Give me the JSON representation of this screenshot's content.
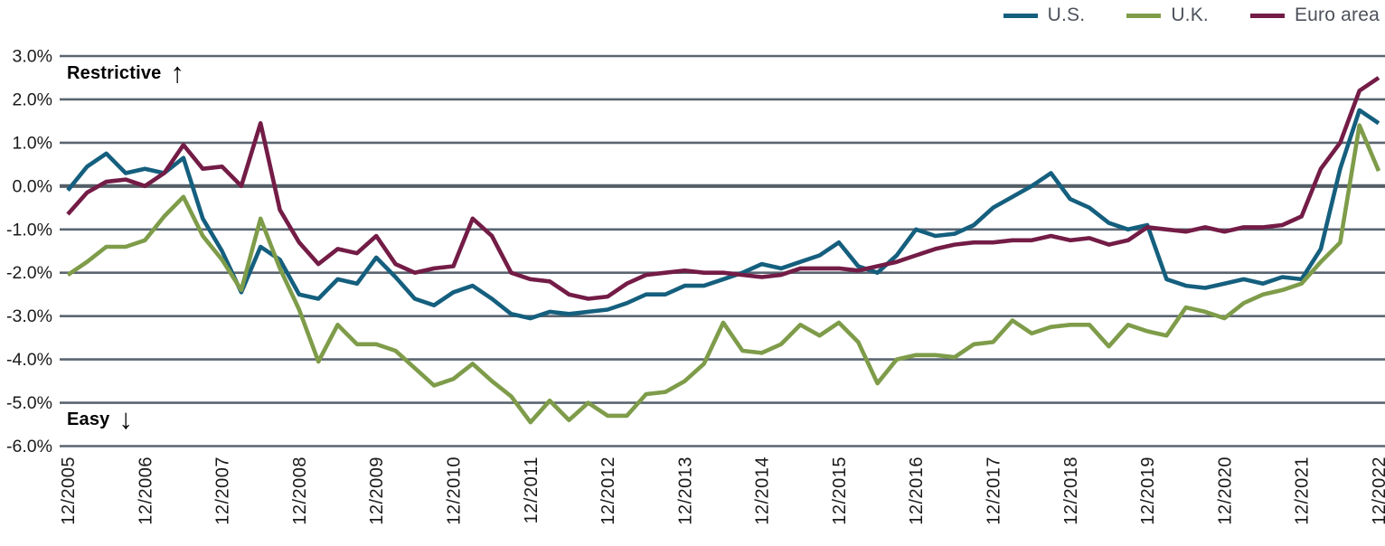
{
  "annotations": {
    "restrictive": {
      "text": "Restrictive",
      "arrow": "↑"
    },
    "easy": {
      "text": "Easy",
      "arrow": "↓"
    }
  },
  "chart_data": {
    "type": "line",
    "title": "",
    "xlabel": "",
    "ylabel": "",
    "ylim": [
      -6,
      3
    ],
    "grid": "horizontal",
    "legend_position": "top-right",
    "y_tick_values": [
      3,
      2,
      1,
      0,
      -1,
      -2,
      -3,
      -4,
      -5,
      -6
    ],
    "y_tick_labels": [
      "3.0%",
      "2.0%",
      "1.0%",
      "0.0%",
      "-1.0%",
      "-2.0%",
      "-3.0%",
      "-4.0%",
      "-5.0%",
      "-6.0%"
    ],
    "x_tick_labels": [
      "12/2005",
      "12/2006",
      "12/2007",
      "12/2008",
      "12/2009",
      "12/2010",
      "12/2011",
      "12/2012",
      "12/2013",
      "12/2014",
      "12/2015",
      "12/2016",
      "12/2017",
      "12/2018",
      "12/2019",
      "12/2020",
      "12/2021",
      "12/2022"
    ],
    "x_tick_every": 4,
    "points_start": "12/2005",
    "points_frequency": "quarterly",
    "series": [
      {
        "name": "U.S.",
        "color": "#155f7e",
        "values": [
          -0.1,
          0.45,
          0.75,
          0.3,
          0.4,
          0.3,
          0.65,
          -0.75,
          -1.5,
          -2.45,
          -1.4,
          -1.7,
          -2.5,
          -2.6,
          -2.15,
          -2.25,
          -1.65,
          -2.1,
          -2.6,
          -2.75,
          -2.45,
          -2.3,
          -2.6,
          -2.95,
          -3.05,
          -2.9,
          -2.95,
          -2.9,
          -2.85,
          -2.7,
          -2.5,
          -2.5,
          -2.3,
          -2.3,
          -2.15,
          -2.0,
          -1.8,
          -1.9,
          -1.75,
          -1.6,
          -1.3,
          -1.85,
          -2.0,
          -1.6,
          -1.0,
          -1.15,
          -1.1,
          -0.9,
          -0.5,
          -0.25,
          0.0,
          0.3,
          -0.3,
          -0.5,
          -0.85,
          -1.0,
          -0.9,
          -2.15,
          -2.3,
          -2.35,
          -2.25,
          -2.15,
          -2.25,
          -2.1,
          -2.15,
          -1.45,
          0.4,
          1.75,
          1.45
        ]
      },
      {
        "name": "U.K.",
        "color": "#7e9c49",
        "values": [
          -2.05,
          -1.75,
          -1.4,
          -1.4,
          -1.25,
          -0.7,
          -0.25,
          -1.15,
          -1.7,
          -2.4,
          -0.75,
          -1.9,
          -2.85,
          -4.05,
          -3.2,
          -3.65,
          -3.65,
          -3.8,
          -4.2,
          -4.6,
          -4.45,
          -4.1,
          -4.5,
          -4.85,
          -5.45,
          -4.95,
          -5.4,
          -5.0,
          -5.3,
          -5.3,
          -4.8,
          -4.75,
          -4.5,
          -4.1,
          -3.15,
          -3.8,
          -3.85,
          -3.65,
          -3.2,
          -3.45,
          -3.15,
          -3.6,
          -4.55,
          -4.0,
          -3.9,
          -3.9,
          -3.95,
          -3.65,
          -3.6,
          -3.1,
          -3.4,
          -3.25,
          -3.2,
          -3.2,
          -3.7,
          -3.2,
          -3.35,
          -3.45,
          -2.8,
          -2.9,
          -3.05,
          -2.7,
          -2.5,
          -2.4,
          -2.25,
          -1.75,
          -1.3,
          1.4,
          0.35
        ]
      },
      {
        "name": "Euro area",
        "color": "#731c46",
        "values": [
          -0.65,
          -0.15,
          0.1,
          0.15,
          0.0,
          0.3,
          0.95,
          0.4,
          0.45,
          0.0,
          1.45,
          -0.55,
          -1.3,
          -1.8,
          -1.45,
          -1.55,
          -1.15,
          -1.8,
          -2.0,
          -1.9,
          -1.85,
          -0.75,
          -1.15,
          -2.0,
          -2.15,
          -2.2,
          -2.5,
          -2.6,
          -2.55,
          -2.25,
          -2.05,
          -2.0,
          -1.95,
          -2.0,
          -2.0,
          -2.05,
          -2.1,
          -2.05,
          -1.9,
          -1.9,
          -1.9,
          -1.95,
          -1.85,
          -1.75,
          -1.6,
          -1.45,
          -1.35,
          -1.3,
          -1.3,
          -1.25,
          -1.25,
          -1.15,
          -1.25,
          -1.2,
          -1.35,
          -1.25,
          -0.95,
          -1.0,
          -1.05,
          -0.95,
          -1.05,
          -0.95,
          -0.95,
          -0.9,
          -0.7,
          0.4,
          1.0,
          2.2,
          2.5
        ]
      }
    ],
    "colors": {
      "gridline": "#5a6570",
      "zero_line": "#555e67",
      "axis_text": "#1a1a1a",
      "legend_text": "#4d525a"
    }
  }
}
